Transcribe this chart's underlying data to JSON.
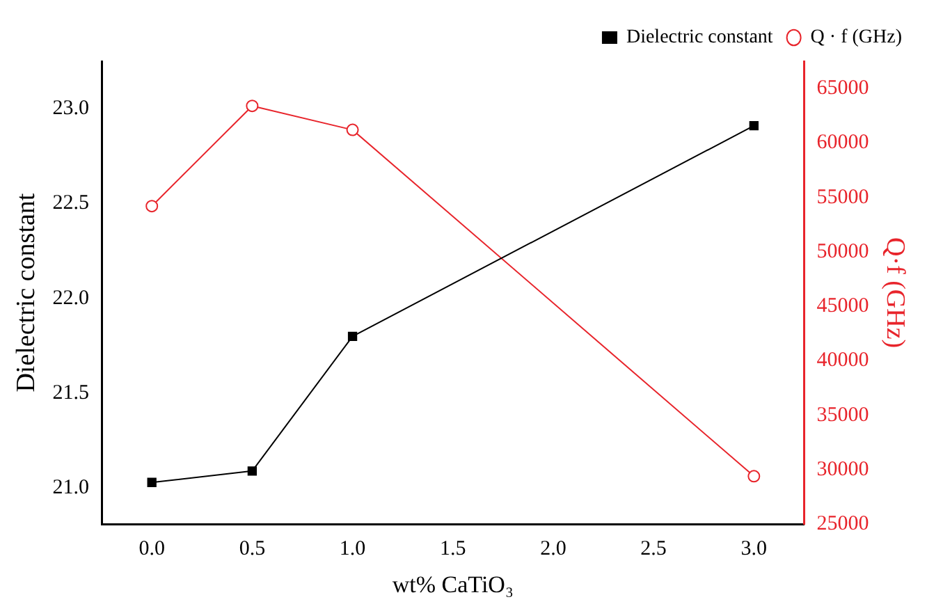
{
  "chart_data": {
    "type": "line",
    "xlabel": "wt% CaTiO₃",
    "ylabel": "Dielectric constant",
    "y2label": "Q·f (GHz)",
    "x": [
      0,
      0.5,
      1.0,
      3.0
    ],
    "xlim": [
      -0.25,
      3.25
    ],
    "xticks": [
      {
        "value": 0,
        "label": "0.0"
      },
      {
        "value": 0.5,
        "label": "0.5"
      },
      {
        "value": 1,
        "label": "1.0"
      },
      {
        "value": 1.5,
        "label": "1.5"
      },
      {
        "value": 2,
        "label": "2.0"
      },
      {
        "value": 2.5,
        "label": "2.5"
      },
      {
        "value": 3,
        "label": "3.0"
      }
    ],
    "ylim": [
      20.81,
      23.25
    ],
    "yticks": [
      {
        "value": 21,
        "label": "21.0"
      },
      {
        "value": 21.5,
        "label": "21.5"
      },
      {
        "value": 22,
        "label": "22.0"
      },
      {
        "value": 22.5,
        "label": "22.5"
      },
      {
        "value": 23,
        "label": "23.0"
      }
    ],
    "y2lim": [
      25000,
      67500
    ],
    "y2ticks": [
      25000,
      30000,
      35000,
      40000,
      45000,
      50000,
      55000,
      60000,
      65000
    ],
    "series": [
      {
        "name": "Dielectric constant",
        "color": "#000000",
        "marker": "square",
        "values": [
          21.03,
          21.09,
          21.8,
          22.91
        ]
      },
      {
        "name": "Q · f (GHz)",
        "color": "#e8242b",
        "marker": "circle",
        "axis": "y2",
        "values": [
          54200,
          63400,
          61200,
          29400
        ]
      }
    ],
    "legend": "top right",
    "grid": false,
    "line_style": "solid"
  }
}
